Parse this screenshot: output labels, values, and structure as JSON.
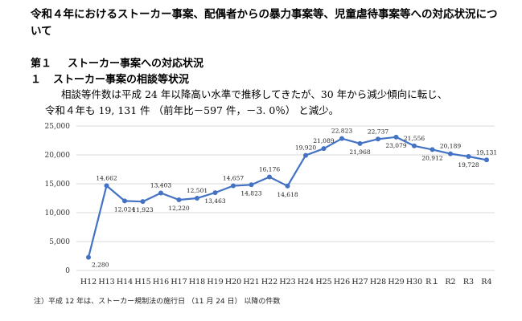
{
  "document": {
    "title": "令和４年におけるストーカー事案、配偶者からの暴力事案等、児童虐待事案等への対応状況について",
    "section": {
      "number": "第１",
      "title": "ストーカー事案への対応状況"
    },
    "subsection": {
      "number": "１",
      "title": "ストーカー事案の相談等状況"
    },
    "body_line1": "相談等件数は平成 24 年以降高い水準で推移してきたが、30 年から減少傾向に転じ、",
    "body_line2": "令和４年も 19, 131 件 （前年比－597 件，－3. 0％） と減少。",
    "note": "注）平成 12 年は、ストーカー規制法の施行日 （11 月 24 日） 以降の件数"
  },
  "chart_data": {
    "type": "line",
    "title": "",
    "xlabel": "",
    "ylabel": "",
    "categories": [
      "H12",
      "H13",
      "H14",
      "H15",
      "H16",
      "H17",
      "H18",
      "H19",
      "H20",
      "H21",
      "H22",
      "H23",
      "H24",
      "H25",
      "H26",
      "H27",
      "H28",
      "H29",
      "H30",
      "R１",
      "R2",
      "R3",
      "R4"
    ],
    "values": [
      2280,
      14662,
      12024,
      11923,
      13403,
      12220,
      12501,
      13463,
      14657,
      14823,
      16176,
      14618,
      19920,
      21089,
      22823,
      21968,
      22737,
      23079,
      21556,
      20912,
      20189,
      19728,
      19131
    ],
    "data_labels": [
      "2,280",
      "14,662",
      "12,024",
      "11,923",
      "13,403",
      "12,220",
      "12,501",
      "13,463",
      "14,657",
      "14,823",
      "16,176",
      "14,618",
      "19,920",
      "21,089",
      "22,823",
      "21,968",
      "22,737",
      "23,079",
      "21,556",
      "20,912",
      "20,189",
      "19,728",
      "19,131"
    ],
    "ylim": [
      0,
      25000
    ],
    "yticks": [
      0,
      5000,
      10000,
      15000,
      20000,
      25000
    ],
    "ytick_labels": [
      "0",
      "5,000",
      "10,000",
      "15,000",
      "20,000",
      "25,000"
    ],
    "grid": true,
    "line_color": "#4472c4",
    "grid_color": "#d9d9d9"
  }
}
